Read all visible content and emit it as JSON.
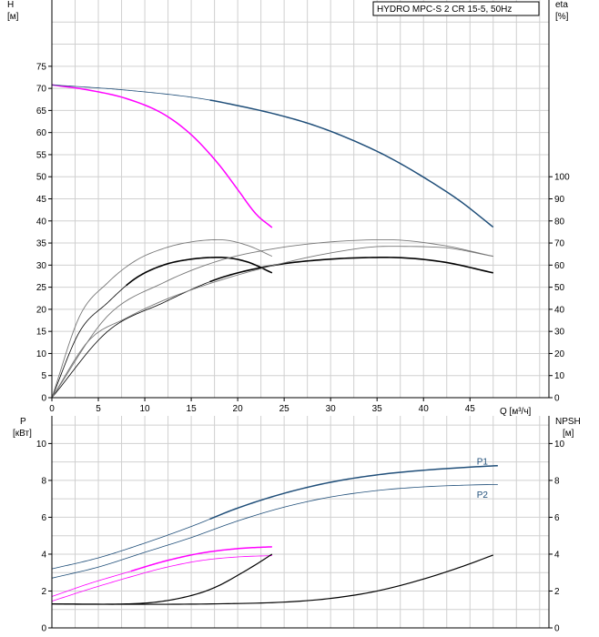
{
  "chart_data": [
    {
      "type": "line",
      "name": "head-efficiency",
      "title": "HYDRO MPC-S 2 CR 15-5, 50Hz",
      "xlabel": "Q [м³/ч]",
      "ylabel_left": "H [м]",
      "ylabel_left_lines": [
        "H",
        "[м]"
      ],
      "ylabel_right_lines": [
        "eta",
        "[%]"
      ],
      "xlim": [
        0,
        53.5
      ],
      "x_ticks": [
        0,
        5,
        10,
        15,
        20,
        25,
        30,
        35,
        40,
        45
      ],
      "ylim_left": [
        0,
        90
      ],
      "y_ticks_left": [
        0,
        5,
        10,
        15,
        20,
        25,
        30,
        35,
        40,
        45,
        50,
        55,
        60,
        65,
        70,
        75
      ],
      "ylim_right": [
        0,
        180
      ],
      "y_ticks_right": [
        0,
        10,
        20,
        30,
        40,
        50,
        60,
        70,
        80,
        90,
        100
      ],
      "grid": true,
      "series": [
        {
          "name": "H pump 1 (duty)",
          "axis": "left",
          "color": "#ff00ff",
          "width": 1.5,
          "x": [
            0,
            4,
            8,
            12,
            15,
            18,
            20,
            22,
            23.7
          ],
          "y": [
            70.8,
            69.6,
            67.7,
            64.2,
            59.5,
            52.7,
            47.1,
            41.5,
            38.5
          ]
        },
        {
          "name": "H 2 pumps",
          "axis": "left",
          "color": "#1f4e79",
          "width": 1.5,
          "from_x": 17,
          "x": [
            0,
            8,
            16,
            20,
            24,
            28,
            32,
            36,
            40,
            44,
            47.5
          ],
          "y": [
            70.8,
            69.6,
            67.7,
            66.1,
            64.2,
            61.8,
            58.6,
            54.7,
            49.9,
            44.4,
            38.6
          ]
        },
        {
          "name": "eta 1 pump system",
          "axis": "right",
          "color": "#000000",
          "width": 1.6,
          "from_x": 8,
          "x": [
            0,
            3,
            6,
            9,
            12,
            15,
            18,
            21,
            23.7
          ],
          "y": [
            0,
            30,
            43,
            54,
            60,
            62.7,
            63.5,
            61.5,
            56.5
          ]
        },
        {
          "name": "eta 1 pump",
          "axis": "right",
          "color": "#777777",
          "width": 0.9,
          "x": [
            0,
            3,
            6,
            9,
            12,
            15,
            18,
            21,
            23.7
          ],
          "y": [
            0,
            37,
            52,
            62,
            67.5,
            70.5,
            71.5,
            69,
            64
          ]
        },
        {
          "name": "eta 2 pumps system",
          "axis": "right",
          "color": "#000000",
          "width": 1.6,
          "from_x": 17,
          "x": [
            0,
            6,
            12,
            18,
            24,
            30,
            36,
            42,
            47.5
          ],
          "y": [
            0,
            30,
            43,
            54,
            60,
            62.7,
            63.5,
            61.5,
            56.5
          ]
        },
        {
          "name": "eta 2 pumps",
          "axis": "right",
          "color": "#777777",
          "width": 0.9,
          "x": [
            0,
            6,
            12,
            18,
            24,
            30,
            36,
            42,
            47.5
          ],
          "y": [
            0,
            37,
            52,
            62,
            67.5,
            70.5,
            71.5,
            69,
            64
          ]
        },
        {
          "name": "eta 2 pumps (outer)",
          "axis": "right",
          "color": "#777777",
          "width": 0.9,
          "x": [
            0,
            4,
            8,
            12,
            18,
            24,
            30,
            36,
            42,
            47.5
          ],
          "y": [
            0,
            26,
            36,
            44,
            53,
            60,
            65.5,
            68.5,
            68,
            64
          ]
        }
      ]
    },
    {
      "type": "line",
      "name": "power-npsh",
      "ylabel_left_lines": [
        "P",
        "[кВт]"
      ],
      "ylabel_right_lines": [
        "NPSH",
        "[м]"
      ],
      "xlim": [
        0,
        53.5
      ],
      "ylim_left": [
        0,
        11.5
      ],
      "y_ticks_left": [
        0,
        2,
        4,
        6,
        8,
        10
      ],
      "ylim_right": [
        0,
        11.5
      ],
      "y_ticks_right": [
        0,
        2,
        4,
        6,
        8,
        10
      ],
      "grid": true,
      "annotations": [
        {
          "text": "P1",
          "x": 47.5,
          "y": 9.05,
          "color": "#1f4e79"
        },
        {
          "text": "P2",
          "x": 47.5,
          "y": 7.25,
          "color": "#1f4e79"
        }
      ],
      "series": [
        {
          "name": "P1 2 pumps",
          "axis": "left",
          "color": "#1f4e79",
          "width": 1.5,
          "from_x": 17,
          "x": [
            0,
            5,
            10,
            15,
            20,
            25,
            30,
            35,
            40,
            45,
            48
          ],
          "y": [
            3.2,
            3.8,
            4.6,
            5.5,
            6.5,
            7.3,
            7.9,
            8.3,
            8.55,
            8.72,
            8.8
          ]
        },
        {
          "name": "P2 2 pumps",
          "axis": "left",
          "color": "#1f4e79",
          "width": 0.8,
          "x": [
            0,
            5,
            10,
            15,
            20,
            25,
            30,
            35,
            40,
            45,
            48
          ],
          "y": [
            2.7,
            3.3,
            4.1,
            4.9,
            5.8,
            6.55,
            7.1,
            7.45,
            7.65,
            7.75,
            7.78
          ]
        },
        {
          "name": "P1 1 pump",
          "axis": "left",
          "color": "#ff00ff",
          "width": 1.5,
          "from_x": 8.5,
          "x": [
            0,
            4,
            8,
            12,
            16,
            20,
            23.7
          ],
          "y": [
            1.7,
            2.4,
            3.0,
            3.6,
            4.05,
            4.3,
            4.4
          ]
        },
        {
          "name": "P2 1 pump",
          "axis": "left",
          "color": "#ff00ff",
          "width": 0.8,
          "x": [
            0,
            4,
            8,
            12,
            16,
            20,
            23.7
          ],
          "y": [
            1.45,
            2.1,
            2.7,
            3.25,
            3.65,
            3.85,
            3.92
          ]
        },
        {
          "name": "NPSH 1 pump",
          "axis": "right",
          "color": "#000000",
          "width": 1.2,
          "x": [
            0,
            4,
            8,
            12,
            16,
            18,
            20,
            22,
            23.7
          ],
          "y": [
            1.3,
            1.28,
            1.3,
            1.45,
            1.9,
            2.3,
            2.85,
            3.45,
            4.0
          ]
        },
        {
          "name": "NPSH 2 pumps",
          "axis": "right",
          "color": "#000000",
          "width": 1.2,
          "x": [
            0,
            10,
            17,
            25,
            30,
            35,
            40,
            44,
            47.5
          ],
          "y": [
            1.3,
            1.28,
            1.3,
            1.4,
            1.6,
            2.0,
            2.65,
            3.3,
            3.95
          ]
        }
      ]
    }
  ]
}
